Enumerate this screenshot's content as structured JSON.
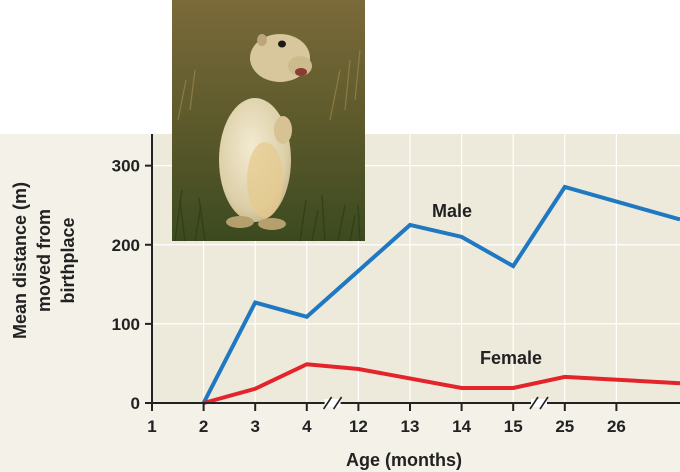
{
  "chart_data": {
    "type": "line",
    "categories": [
      "1",
      "2",
      "3",
      "4",
      "12",
      "13",
      "14",
      "15",
      "25",
      "26"
    ],
    "xlabel": "Age (months)",
    "ylabel": "Mean distance (m) moved from birthplace",
    "ylabel_lines": [
      "Mean distance (m)",
      "moved from",
      "birthplace"
    ],
    "ylim": [
      0,
      340
    ],
    "yticks": [
      0,
      100,
      200,
      300
    ],
    "axis_breaks_between": [
      [
        "4",
        "12"
      ],
      [
        "15",
        "25"
      ]
    ],
    "grid": true,
    "series": [
      {
        "name": "Male",
        "color": "#1f78c1",
        "points": [
          {
            "x": "2",
            "y": 0
          },
          {
            "x": "3",
            "y": 127
          },
          {
            "x": "4",
            "y": 109
          },
          {
            "x": "13",
            "y": 225
          },
          {
            "x": "14",
            "y": 210
          },
          {
            "x": "15",
            "y": 173
          },
          {
            "x": "25",
            "y": 273
          },
          {
            "x": "end",
            "y": 232
          }
        ]
      },
      {
        "name": "Female",
        "color": "#e3252b",
        "points": [
          {
            "x": "2",
            "y": 0
          },
          {
            "x": "3",
            "y": 18
          },
          {
            "x": "4",
            "y": 49
          },
          {
            "x": "12",
            "y": 43
          },
          {
            "x": "14",
            "y": 19
          },
          {
            "x": "15",
            "y": 19
          },
          {
            "x": "25",
            "y": 33
          },
          {
            "x": "end",
            "y": 25
          }
        ]
      }
    ],
    "colors": {
      "plot_background": "#eeeadb",
      "grid": "#ffffff",
      "axis": "#222222"
    }
  },
  "photo": {
    "subject": "ground-squirrel-photo"
  }
}
